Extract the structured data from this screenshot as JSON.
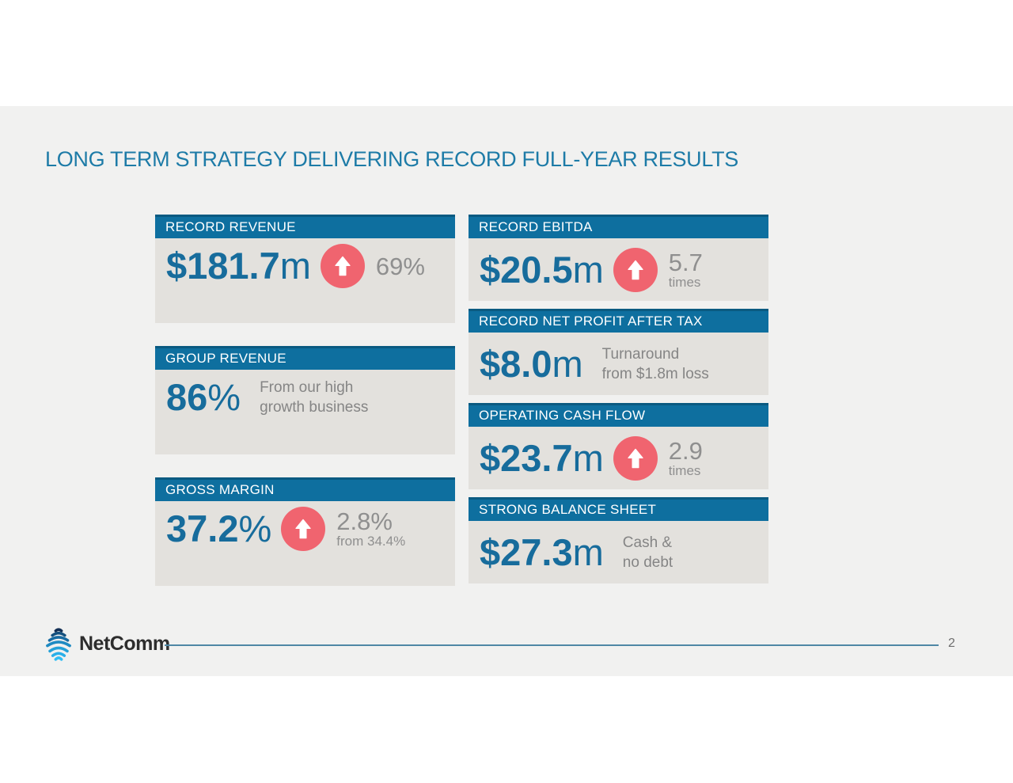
{
  "slide": {
    "title": "LONG TERM STRATEGY DELIVERING RECORD FULL-YEAR RESULTS",
    "brand": "NetComm",
    "page_number": "2"
  },
  "metrics": {
    "left": [
      {
        "header": "RECORD REVENUE",
        "value_main": "$181.7",
        "value_suffix": "m",
        "arrow": true,
        "note_style": "stacked",
        "note_primary": "69%",
        "note_secondary": ""
      },
      {
        "header": "GROUP REVENUE",
        "value_main": "86",
        "value_suffix": "%",
        "arrow": false,
        "note_style": "lines",
        "note_primary": "From our high",
        "note_secondary": "growth business"
      },
      {
        "header": "GROSS MARGIN",
        "value_main": "37.2",
        "value_suffix": "%",
        "arrow": true,
        "note_style": "stacked",
        "note_primary": "2.8%",
        "note_secondary": "from 34.4%"
      }
    ],
    "right": [
      {
        "header": "RECORD EBITDA",
        "value_main": "$20.5",
        "value_suffix": "m",
        "arrow": true,
        "note_style": "stacked",
        "note_primary": "5.7",
        "note_secondary": "times"
      },
      {
        "header": "RECORD NET PROFIT AFTER TAX",
        "value_main": "$8.0",
        "value_suffix": "m",
        "arrow": false,
        "note_style": "lines",
        "note_primary": "Turnaround",
        "note_secondary": "from $1.8m loss"
      },
      {
        "header": "OPERATING CASH FLOW",
        "value_main": "$23.7",
        "value_suffix": "m",
        "arrow": true,
        "note_style": "stacked",
        "note_primary": "2.9",
        "note_secondary": "times"
      },
      {
        "header": "STRONG BALANCE SHEET",
        "value_main": "$27.3",
        "value_suffix": "m",
        "arrow": false,
        "note_style": "lines",
        "note_primary": "Cash &",
        "note_secondary": "no debt"
      }
    ]
  },
  "colors": {
    "slide-bg": "#f1f1f0",
    "title-blue": "#1d7ba7",
    "header-bar": "#0e6f9f",
    "header-bar-top": "#0a5a81",
    "box-body": "#e3e1dd",
    "value-blue": "#176c9c",
    "arrow-pink": "#f0646f",
    "note-gray": "#8f8f8f",
    "note-gray2": "#858585",
    "footer-line": "#4f87a5"
  }
}
